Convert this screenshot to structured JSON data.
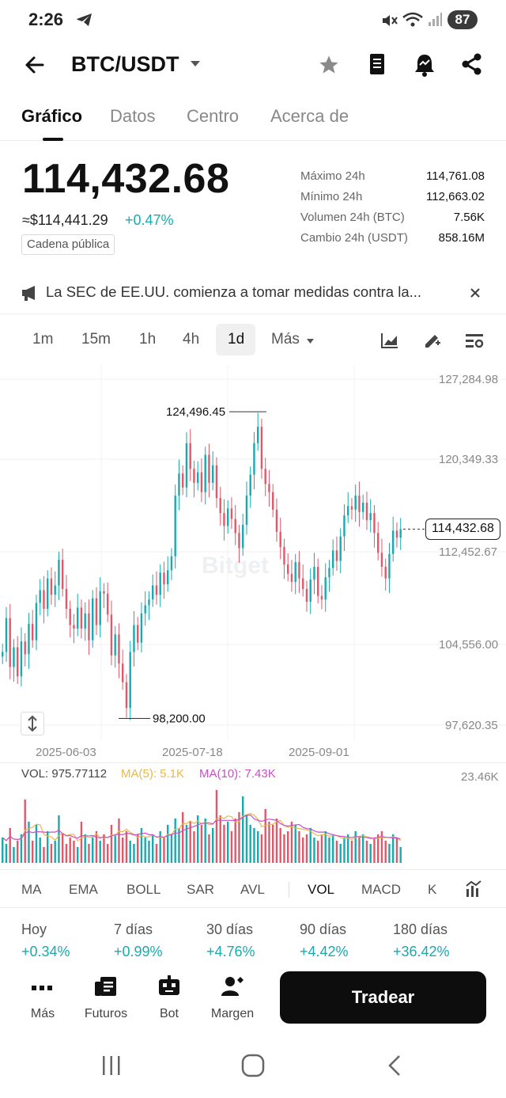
{
  "status_bar": {
    "time": "2:26",
    "battery": "87"
  },
  "header": {
    "pair": "BTC/USDT"
  },
  "tabs": [
    {
      "label": "Gráfico"
    },
    {
      "label": "Datos"
    },
    {
      "label": "Centro"
    },
    {
      "label": "Acerca de"
    }
  ],
  "ticker": {
    "price": "114,432.68",
    "approx_usd": "≈$114,441.29",
    "change": "+0.47%",
    "chain_badge": "Cadena pública",
    "stats": [
      {
        "label": "Máximo 24h",
        "value": "114,761.08"
      },
      {
        "label": "Mínimo 24h",
        "value": "112,663.02"
      },
      {
        "label": "Volumen 24h (BTC)",
        "value": "7.56K"
      },
      {
        "label": "Cambio 24h (USDT)",
        "value": "858.16M"
      }
    ]
  },
  "news": {
    "text": "La SEC de EE.UU. comienza a tomar medidas contra la..."
  },
  "intervals": [
    "1m",
    "15m",
    "1h",
    "4h",
    "1d"
  ],
  "more_label": "Más",
  "chart_data": {
    "type": "candlestick",
    "price_axis": [
      "127,284.98",
      "120,349.33",
      "112,452.67",
      "104,556.00",
      "97,620.35"
    ],
    "date_axis": [
      "2025-06-03",
      "2025-07-18",
      "2025-09-01"
    ],
    "high_marker": "124,496.45",
    "low_marker": "98,200.00",
    "last_price_tag": "114,432.68",
    "ylim": [
      97620.35,
      127284.98
    ],
    "closes": [
      103900,
      106800,
      102600,
      104300,
      101800,
      104800,
      103700,
      106300,
      104900,
      108100,
      109200,
      107600,
      110200,
      108800,
      109600,
      111800,
      109300,
      107600,
      106200,
      105900,
      107700,
      105900,
      107200,
      104900,
      108500,
      106200,
      109100,
      108900,
      107100,
      103600,
      105400,
      102900,
      101300,
      99100,
      103900,
      106200,
      104700,
      107200,
      107900,
      108400,
      109600,
      108800,
      110700,
      109700,
      110900,
      112100,
      117300,
      119200,
      118000,
      121800,
      119600,
      118400,
      119300,
      117600,
      120800,
      118400,
      119900,
      117100,
      115800,
      114700,
      116200,
      115300,
      114100,
      112800,
      114800,
      117300,
      119100,
      121800,
      123200,
      119600,
      118300,
      117600,
      116100,
      114200,
      112900,
      111400,
      110600,
      109900,
      111600,
      110200,
      109300,
      108200,
      110100,
      111200,
      108700,
      108400,
      110300,
      111100,
      112600,
      111700,
      113800,
      115600,
      116400,
      116100,
      117300,
      115900,
      116700,
      115200,
      115800,
      114100,
      112400,
      111200,
      110200,
      112300,
      114300,
      113700,
      114432
    ]
  },
  "volume": {
    "label": "VOL: 975.77112",
    "ma5": "MA(5): 5.1K",
    "ma10": "MA(10): 7.43K",
    "axis_max": "23.46K",
    "axis_max_value": 23460,
    "values": [
      8000,
      6000,
      11000,
      5000,
      7000,
      9000,
      20000,
      13000,
      7000,
      12000,
      8000,
      5000,
      10000,
      6000,
      7000,
      15000,
      9000,
      6000,
      8000,
      7000,
      5000,
      13000,
      9000,
      6000,
      8000,
      10000,
      7000,
      9000,
      6000,
      12000,
      9000,
      14000,
      8000,
      10000,
      7000,
      6000,
      9000,
      11000,
      8000,
      7000,
      9000,
      6000,
      10000,
      8000,
      12000,
      9000,
      14000,
      11000,
      16000,
      12000,
      13000,
      10000,
      15000,
      12000,
      14000,
      9000,
      11000,
      23000,
      15000,
      12000,
      13000,
      10000,
      14000,
      16000,
      21000,
      15000,
      12000,
      11000,
      10000,
      9000,
      17000,
      13000,
      12000,
      14000,
      11000,
      9000,
      10000,
      13000,
      12000,
      10000,
      8000,
      9000,
      11000,
      8000,
      7000,
      9000,
      10000,
      8000,
      9000,
      7000,
      6000,
      8000,
      9000,
      7000,
      10000,
      8000,
      9000,
      7000,
      6000,
      8000,
      9000,
      10000,
      7000,
      6000,
      9000,
      8000,
      5000
    ]
  },
  "indicators": [
    "MA",
    "EMA",
    "BOLL",
    "SAR",
    "AVL",
    "VOL",
    "MACD",
    "K"
  ],
  "performance": [
    {
      "label": "Hoy",
      "value": "+0.34%"
    },
    {
      "label": "7 días",
      "value": "+0.99%"
    },
    {
      "label": "30 días",
      "value": "+4.76%"
    },
    {
      "label": "90 días",
      "value": "+4.42%"
    },
    {
      "label": "180 días",
      "value": "+36.42%"
    }
  ],
  "bottom_nav": [
    {
      "label": "Más"
    },
    {
      "label": "Futuros"
    },
    {
      "label": "Bot"
    },
    {
      "label": "Margen"
    }
  ],
  "trade_button": "Tradear",
  "colors": {
    "up": "#19aab0",
    "down": "#e0596a",
    "ma5": "#e8b84a",
    "ma10": "#c94fc9"
  }
}
